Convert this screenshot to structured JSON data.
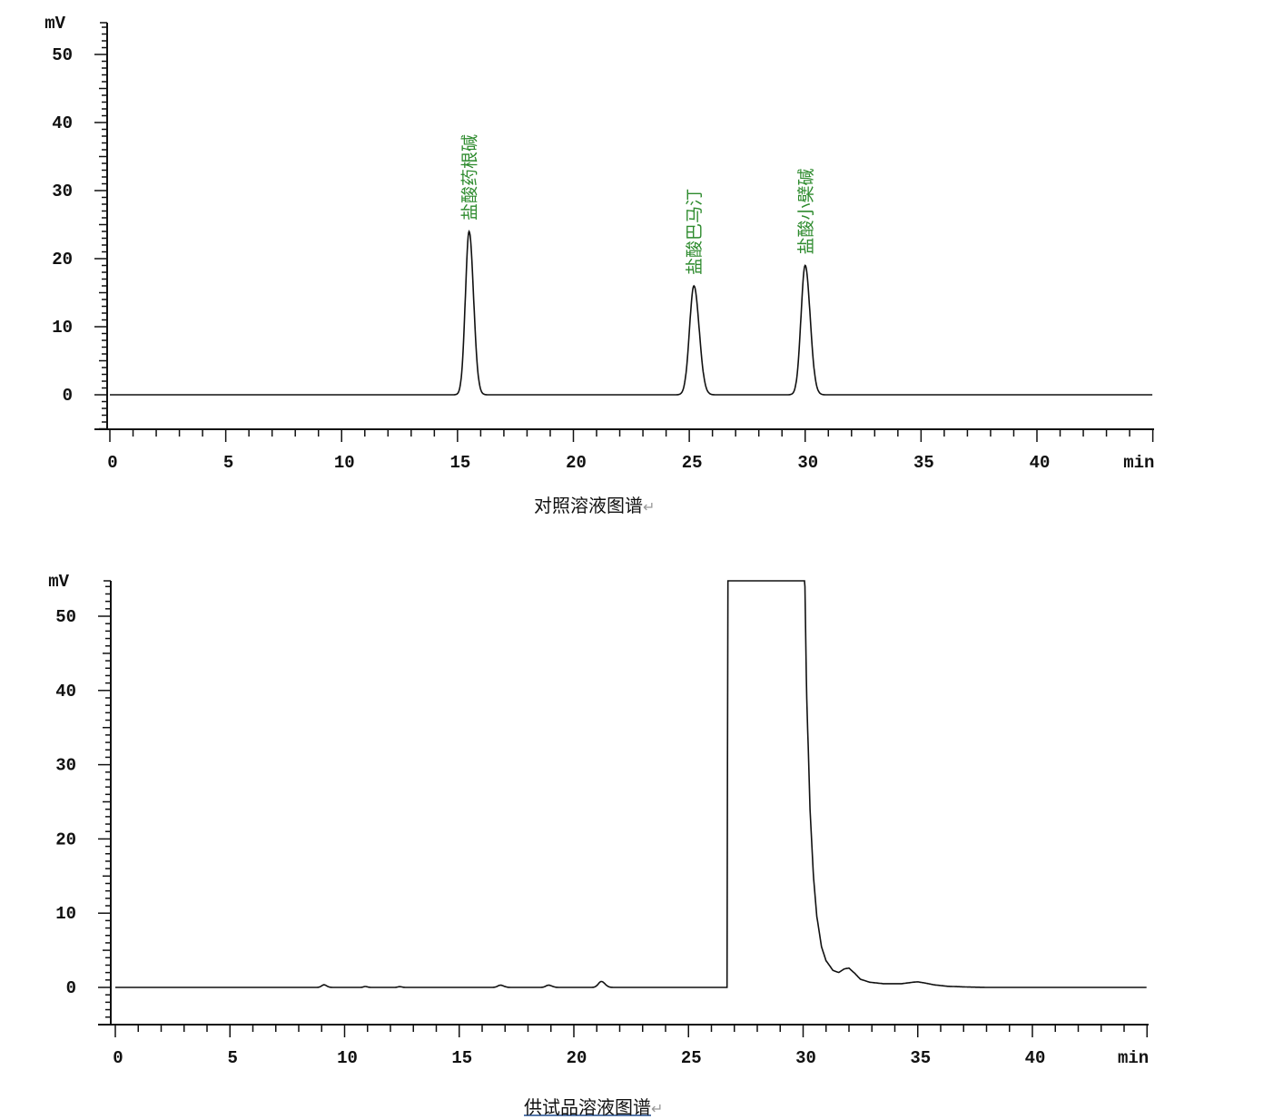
{
  "chart_data": [
    {
      "type": "line",
      "title": "",
      "caption": "对照溶液图谱",
      "xlabel": "min",
      "ylabel": "mV",
      "xlim": [
        0,
        45
      ],
      "ylim": [
        -5,
        55
      ],
      "xticks": [
        0,
        5,
        10,
        15,
        20,
        25,
        30,
        35,
        40
      ],
      "yticks": [
        0,
        10,
        20,
        30,
        40,
        50
      ],
      "grid": false,
      "line_color": "#111111",
      "label_color": "#2e8b2e",
      "peaks": [
        {
          "name": "盐酸药根碱",
          "x": 15.5,
          "y": 24,
          "width": 0.16
        },
        {
          "name": "盐酸巴马汀",
          "x": 25.2,
          "y": 16,
          "width": 0.19
        },
        {
          "name": "盐酸小檗碱",
          "x": 30.0,
          "y": 19,
          "width": 0.18
        }
      ]
    },
    {
      "type": "line",
      "title": "",
      "caption": "供试品溶液图谱",
      "xlabel": "min",
      "ylabel": "mV",
      "xlim": [
        0,
        45
      ],
      "ylim": [
        -5,
        55
      ],
      "xticks": [
        0,
        5,
        10,
        15,
        20,
        25,
        30,
        35,
        40
      ],
      "yticks": [
        0,
        10,
        20,
        30,
        40,
        50
      ],
      "grid": false,
      "line_color": "#111111",
      "peaks": [
        {
          "x": 9.1,
          "y": 0.35,
          "width": 0.1
        },
        {
          "x": 10.9,
          "y": 0.12,
          "width": 0.08
        },
        {
          "x": 12.4,
          "y": 0.1,
          "width": 0.08
        },
        {
          "x": 16.8,
          "y": 0.3,
          "width": 0.12
        },
        {
          "x": 18.9,
          "y": 0.3,
          "width": 0.12
        },
        {
          "x": 21.2,
          "y": 0.8,
          "width": 0.13
        }
      ],
      "main_peak_points": [
        [
          26.6,
          0
        ],
        [
          26.68,
          0
        ],
        [
          26.72,
          60
        ],
        [
          30.05,
          60
        ],
        [
          30.15,
          40
        ],
        [
          30.3,
          24
        ],
        [
          30.45,
          15
        ],
        [
          30.6,
          9.5
        ],
        [
          30.8,
          5.5
        ],
        [
          31.0,
          3.6
        ],
        [
          31.3,
          2.3
        ],
        [
          31.55,
          2.0
        ],
        [
          31.8,
          2.5
        ],
        [
          32.0,
          2.6
        ],
        [
          32.25,
          1.9
        ],
        [
          32.5,
          1.1
        ],
        [
          32.9,
          0.7
        ],
        [
          33.5,
          0.5
        ],
        [
          34.3,
          0.5
        ],
        [
          34.8,
          0.7
        ],
        [
          35.0,
          0.75
        ],
        [
          35.3,
          0.6
        ],
        [
          35.7,
          0.35
        ],
        [
          36.3,
          0.15
        ],
        [
          37.2,
          0.05
        ],
        [
          38,
          0
        ]
      ]
    }
  ]
}
